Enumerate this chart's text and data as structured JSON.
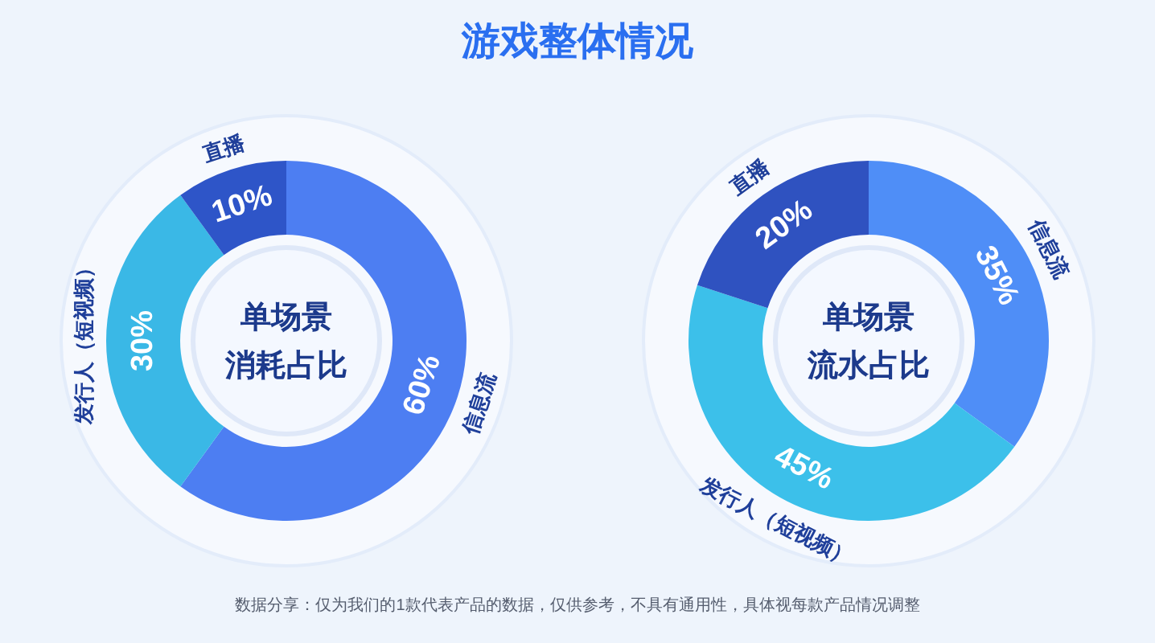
{
  "chart_data": [
    {
      "type": "donut",
      "title": "单场景",
      "subtitle": "消耗占比",
      "categories": [
        "信息流",
        "发行人（短视频）",
        "直播"
      ],
      "values": [
        60,
        30,
        10
      ],
      "colors": [
        "#4d7ef2",
        "#3ab8e6",
        "#2e55c8"
      ],
      "value_labels": [
        "60%",
        "30%",
        "10%"
      ],
      "annotations": [
        "游戏整体情况"
      ]
    },
    {
      "type": "donut",
      "title": "单场景",
      "subtitle": "流水占比",
      "categories": [
        "信息流",
        "发行人（短视频）",
        "直播"
      ],
      "values": [
        35,
        45,
        20
      ],
      "colors": [
        "#4f8ef7",
        "#3cc0ea",
        "#2f52c0"
      ],
      "value_labels": [
        "35%",
        "45%",
        "20%"
      ],
      "annotations": [
        "数据分享：仅为我们的1款代表产品的数据，仅供参考，不具有通用性，具体视每款产品情况调整"
      ]
    }
  ]
}
